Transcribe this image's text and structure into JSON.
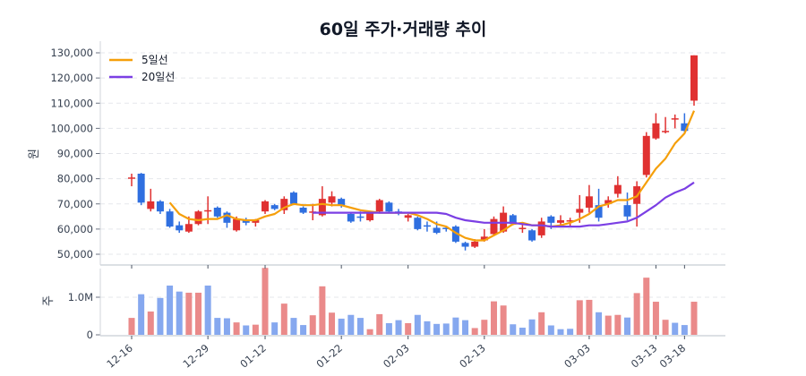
{
  "title": "60일 주가·거래량 추이",
  "colors": {
    "up": "#e03131",
    "down": "#2f6fe0",
    "up_volume": "#ea8a8a",
    "down_volume": "#86a8ef",
    "ma5": "#f59f0a",
    "ma20": "#7b3fe4",
    "grid": "#e5e7eb",
    "axis": "#d1d5db"
  },
  "legend": [
    {
      "label": "5일선",
      "color": "#f59f0a"
    },
    {
      "label": "20일선",
      "color": "#7b3fe4"
    }
  ],
  "price_axis": {
    "label": "원",
    "ticks": [
      "130,000",
      "120,000",
      "110,000",
      "100,000",
      "90,000",
      "80,000",
      "70,000",
      "60,000",
      "50,000"
    ]
  },
  "volume_axis": {
    "label": "주",
    "ticks": [
      "1.0M",
      "0"
    ]
  },
  "x_ticks": [
    "12-16",
    "12-29",
    "01-12",
    "01-22",
    "02-03",
    "02-13",
    "03-03",
    "03-13",
    "03-18"
  ],
  "chart_data": [
    {
      "type": "candlestick",
      "title": "60일 주가·거래량 추이",
      "ylabel": "원",
      "ylim": [
        47000,
        131000
      ],
      "x_tick_labels": [
        "12-16",
        "12-29",
        "01-12",
        "01-22",
        "02-03",
        "02-13",
        "03-03",
        "03-13",
        "03-18"
      ],
      "x_tick_index": [
        0,
        8,
        14,
        22,
        29,
        37,
        48,
        55,
        58
      ],
      "ohlc": [
        [
          80000,
          82000,
          77000,
          80500
        ],
        [
          82000,
          82300,
          69500,
          70500
        ],
        [
          68000,
          76000,
          67000,
          71000
        ],
        [
          71000,
          71500,
          66000,
          67000
        ],
        [
          67000,
          68000,
          60500,
          61000
        ],
        [
          61500,
          63000,
          58500,
          59500
        ],
        [
          59000,
          65000,
          58500,
          62000
        ],
        [
          62000,
          67500,
          61500,
          67000
        ],
        [
          67000,
          73000,
          62000,
          67500
        ],
        [
          68500,
          69000,
          64500,
          65000
        ],
        [
          66500,
          67000,
          60500,
          62500
        ],
        [
          59500,
          65000,
          59000,
          64000
        ],
        [
          63500,
          64500,
          61500,
          62500
        ],
        [
          62500,
          64000,
          61000,
          63500
        ],
        [
          67000,
          71500,
          66000,
          71000
        ],
        [
          69500,
          70000,
          67500,
          68000
        ],
        [
          67500,
          73000,
          66000,
          72000
        ],
        [
          74500,
          75000,
          69500,
          70000
        ],
        [
          68500,
          69000,
          66000,
          66500
        ],
        [
          66500,
          70000,
          63500,
          67000
        ],
        [
          65500,
          77000,
          65000,
          72000
        ],
        [
          70500,
          75000,
          69000,
          73000
        ],
        [
          72000,
          72500,
          68500,
          69500
        ],
        [
          66000,
          66500,
          62500,
          63000
        ],
        [
          65000,
          67000,
          63000,
          64500
        ],
        [
          63500,
          66500,
          63000,
          66500
        ],
        [
          67000,
          72000,
          66500,
          71500
        ],
        [
          70500,
          71000,
          66500,
          67000
        ],
        [
          67000,
          68000,
          65500,
          66500
        ],
        [
          64500,
          66000,
          63000,
          65500
        ],
        [
          64500,
          65000,
          59500,
          60000
        ],
        [
          61500,
          63000,
          59000,
          61000
        ],
        [
          60500,
          63000,
          58000,
          58500
        ],
        [
          60500,
          61000,
          59000,
          60000
        ],
        [
          61000,
          61500,
          54500,
          55000
        ],
        [
          54500,
          55000,
          51500,
          53000
        ],
        [
          53000,
          56000,
          52500,
          55000
        ],
        [
          55500,
          60000,
          55000,
          57000
        ],
        [
          58000,
          65000,
          57500,
          64000
        ],
        [
          59000,
          69000,
          58500,
          66500
        ],
        [
          65500,
          66000,
          61500,
          62000
        ],
        [
          60000,
          62000,
          58500,
          60500
        ],
        [
          59500,
          60000,
          55000,
          55500
        ],
        [
          57500,
          64500,
          56500,
          63000
        ],
        [
          65000,
          65500,
          60000,
          62500
        ],
        [
          62500,
          65500,
          61500,
          63500
        ],
        [
          63000,
          64500,
          61000,
          63500
        ],
        [
          66500,
          73500,
          62500,
          68000
        ],
        [
          68500,
          77500,
          66500,
          73000
        ],
        [
          69500,
          76000,
          63000,
          64500
        ],
        [
          70000,
          73000,
          68500,
          71500
        ],
        [
          74000,
          81000,
          72500,
          77500
        ],
        [
          69500,
          74500,
          63500,
          65000
        ],
        [
          70000,
          79000,
          61000,
          77000
        ],
        [
          81500,
          98500,
          80500,
          97000
        ],
        [
          96000,
          106000,
          95500,
          102000
        ],
        [
          98500,
          104500,
          98000,
          99000
        ],
        [
          104000,
          105500,
          100000,
          104000
        ],
        [
          102000,
          106000,
          98500,
          99000
        ],
        [
          111000,
          129000,
          109000,
          129000
        ]
      ],
      "series": [
        {
          "name": "5일선",
          "values": [
            null,
            null,
            null,
            null,
            70500,
            66000,
            64000,
            63500,
            64000,
            64000,
            65500,
            64000,
            63500,
            63500,
            65000,
            66000,
            68500,
            70000,
            69500,
            69500,
            70000,
            69500,
            69500,
            68500,
            67500,
            67000,
            66500,
            66500,
            66500,
            66500,
            65500,
            64000,
            62000,
            61000,
            58500,
            56500,
            55500,
            55500,
            57500,
            59500,
            62000,
            62500,
            61500,
            61500,
            61000,
            61500,
            62500,
            64000,
            66000,
            69000,
            70000,
            71500,
            71500,
            73000,
            78500,
            84000,
            88000,
            94000,
            98000,
            107000
          ]
        },
        {
          "name": "20일선",
          "values": [
            null,
            null,
            null,
            null,
            null,
            null,
            null,
            null,
            null,
            null,
            null,
            null,
            null,
            null,
            null,
            null,
            null,
            null,
            null,
            66500,
            66500,
            66500,
            66500,
            66500,
            66500,
            66500,
            66500,
            66500,
            66500,
            66500,
            66500,
            66500,
            66500,
            66000,
            64500,
            63500,
            63000,
            62500,
            62500,
            62500,
            62500,
            62000,
            61500,
            61500,
            61000,
            61000,
            61000,
            61000,
            61500,
            61500,
            62000,
            62500,
            63000,
            64500,
            67000,
            69500,
            72500,
            74500,
            76000,
            78500
          ]
        }
      ]
    },
    {
      "type": "bar",
      "ylabel": "주",
      "ylim": [
        0,
        1800000
      ],
      "values": [
        450000,
        1080000,
        620000,
        980000,
        1310000,
        1150000,
        1120000,
        1120000,
        1310000,
        450000,
        440000,
        330000,
        250000,
        270000,
        1780000,
        330000,
        830000,
        450000,
        260000,
        520000,
        1290000,
        590000,
        430000,
        530000,
        450000,
        150000,
        550000,
        310000,
        390000,
        310000,
        530000,
        360000,
        290000,
        300000,
        460000,
        390000,
        180000,
        400000,
        890000,
        780000,
        280000,
        190000,
        410000,
        600000,
        250000,
        150000,
        160000,
        920000,
        930000,
        600000,
        510000,
        530000,
        460000,
        1110000,
        1520000,
        880000,
        400000,
        320000,
        260000,
        880000
      ],
      "up": [
        true,
        false,
        true,
        false,
        false,
        false,
        true,
        true,
        false,
        false,
        false,
        true,
        false,
        true,
        true,
        false,
        true,
        false,
        false,
        true,
        true,
        true,
        false,
        false,
        false,
        true,
        true,
        false,
        false,
        true,
        false,
        false,
        false,
        false,
        false,
        false,
        true,
        true,
        true,
        true,
        false,
        false,
        false,
        true,
        false,
        false,
        false,
        true,
        true,
        false,
        true,
        true,
        false,
        true,
        true,
        true,
        true,
        false,
        false,
        true
      ]
    }
  ]
}
